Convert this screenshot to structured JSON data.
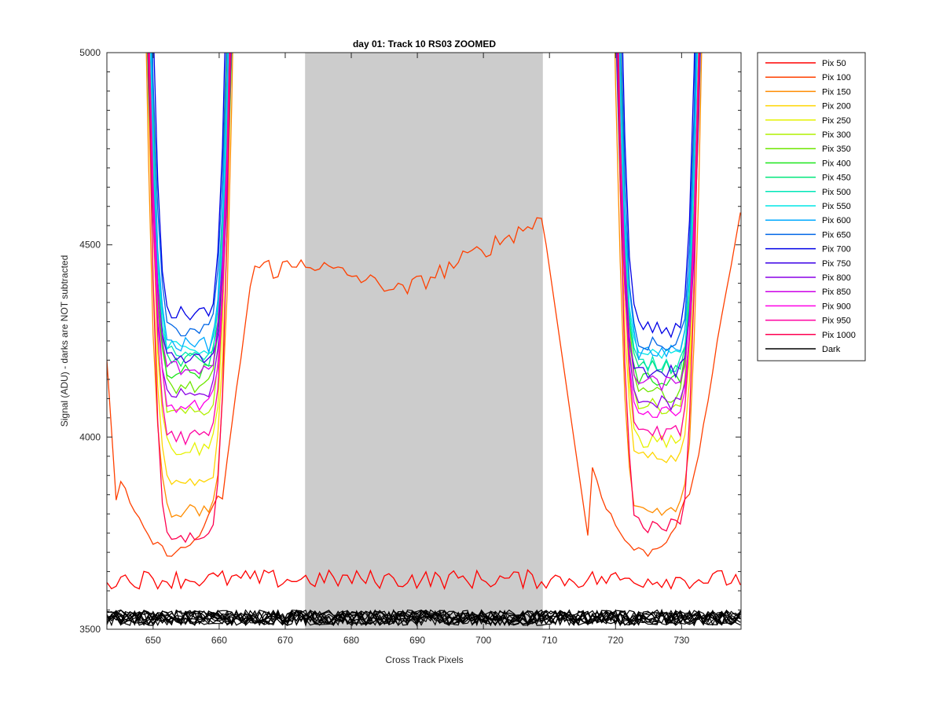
{
  "chart_data": {
    "type": "line",
    "title": "day 01: Track 10  RS03 ZOOMED",
    "xlabel": "Cross Track Pixels",
    "ylabel": "Signal (ADU) - darks are NOT subtracted",
    "xlim": [
      643,
      739
    ],
    "ylim": [
      3500,
      5000
    ],
    "xticks": [
      650,
      660,
      670,
      680,
      690,
      700,
      710,
      720,
      730
    ],
    "yticks": [
      3500,
      4000,
      4500,
      5000
    ],
    "shaded_region": {
      "x_start": 673,
      "x_end": 709,
      "color": "#cccccc"
    },
    "legend_position": "outside-right",
    "series": [
      {
        "name": "Pix 50",
        "color": "#ff0000",
        "valley_left": null,
        "valley_right": null
      },
      {
        "name": "Pix 100",
        "color": "#ff4000",
        "valley_left": 3700,
        "valley_right": 3700
      },
      {
        "name": "Pix 150",
        "color": "#ff8c00",
        "valley_left": 3810,
        "valley_right": 3810
      },
      {
        "name": "Pix 200",
        "color": "#ffd500",
        "valley_left": 3880,
        "valley_right": 3950
      },
      {
        "name": "Pix 250",
        "color": "#e6f200",
        "valley_left": 3970,
        "valley_right": 3990
      },
      {
        "name": "Pix 300",
        "color": "#b0f000",
        "valley_left": 4060,
        "valley_right": 4080
      },
      {
        "name": "Pix 350",
        "color": "#6ee600",
        "valley_left": 4130,
        "valley_right": 4110
      },
      {
        "name": "Pix 400",
        "color": "#1ee61e",
        "valley_left": 4170,
        "valley_right": 4150
      },
      {
        "name": "Pix 450",
        "color": "#00e67a",
        "valley_left": 4200,
        "valley_right": 4180
      },
      {
        "name": "Pix 500",
        "color": "#00e6b8",
        "valley_left": 4220,
        "valley_right": 4190
      },
      {
        "name": "Pix 550",
        "color": "#00e6e6",
        "valley_left": 4230,
        "valley_right": 4210
      },
      {
        "name": "Pix 600",
        "color": "#00aaff",
        "valley_left": 4240,
        "valley_right": 4220
      },
      {
        "name": "Pix 650",
        "color": "#0066e6",
        "valley_left": 4280,
        "valley_right": 4240
      },
      {
        "name": "Pix 700",
        "color": "#0000e6",
        "valley_left": 4320,
        "valley_right": 4280
      },
      {
        "name": "Pix 750",
        "color": "#3b00e6",
        "valley_left": 4200,
        "valley_right": 4170
      },
      {
        "name": "Pix 800",
        "color": "#8a00e6",
        "valley_left": 4120,
        "valley_right": 4090
      },
      {
        "name": "Pix 850",
        "color": "#cc00e6",
        "valley_left": 4180,
        "valley_right": 4140
      },
      {
        "name": "Pix 900",
        "color": "#ff00e6",
        "valley_left": 4080,
        "valley_right": 4060
      },
      {
        "name": "Pix 950",
        "color": "#ff00a0",
        "valley_left": 4000,
        "valley_right": 4010
      },
      {
        "name": "Pix 1000",
        "color": "#ff0050",
        "valley_left": 3740,
        "valley_right": 3770
      },
      {
        "name": "Dark",
        "color": "#000000",
        "valley_left": null,
        "valley_right": null
      }
    ],
    "pix50_level": 3630,
    "dark_level": 3530
  }
}
